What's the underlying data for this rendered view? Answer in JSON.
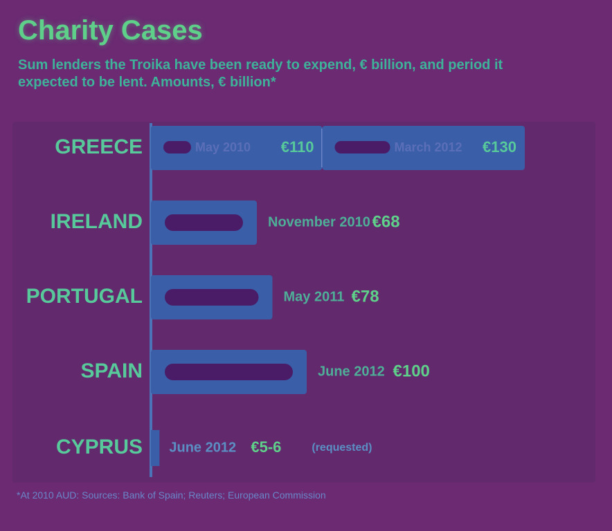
{
  "page": {
    "title": "Charity Cases",
    "subtitle": "Sum lenders the Troika have been ready to expend, € billion, and period it expected to be lent. Amounts, € billion*",
    "footer": "*At 2010 AUD: Sources: Bank of Spain; Reuters; European Commission"
  },
  "colors": {
    "background": "#6b2a72",
    "accent": "#5fd08a",
    "bar_fill": "#4a1b66",
    "bar_border": "#3a5ea8",
    "label": "#57c99a"
  },
  "chart_data": {
    "type": "bar",
    "orientation": "horizontal",
    "title": "Charity Cases",
    "categories": [
      "GREECE",
      "IRELAND",
      "PORTUGAL",
      "SPAIN",
      "CYPRUS"
    ],
    "bars": [
      {
        "country": "GREECE",
        "segments": [
          {
            "label": "May 2010",
            "value": "€110",
            "amount": 110
          },
          {
            "label": "March 2012",
            "value": "€130",
            "amount": 130
          }
        ]
      },
      {
        "country": "IRELAND",
        "segments": [
          {
            "label": "November 2010",
            "value": "€68",
            "amount": 68
          }
        ]
      },
      {
        "country": "PORTUGAL",
        "segments": [
          {
            "label": "May 2011",
            "value": "€78",
            "amount": 78
          }
        ]
      },
      {
        "country": "SPAIN",
        "segments": [
          {
            "label": "June 2012",
            "value": "€100",
            "amount": 100
          }
        ]
      },
      {
        "country": "CYPRUS",
        "segments": [
          {
            "label": "June 2012",
            "value": "€5-6",
            "amount": 5.5,
            "note": "(requested)"
          }
        ]
      }
    ]
  }
}
